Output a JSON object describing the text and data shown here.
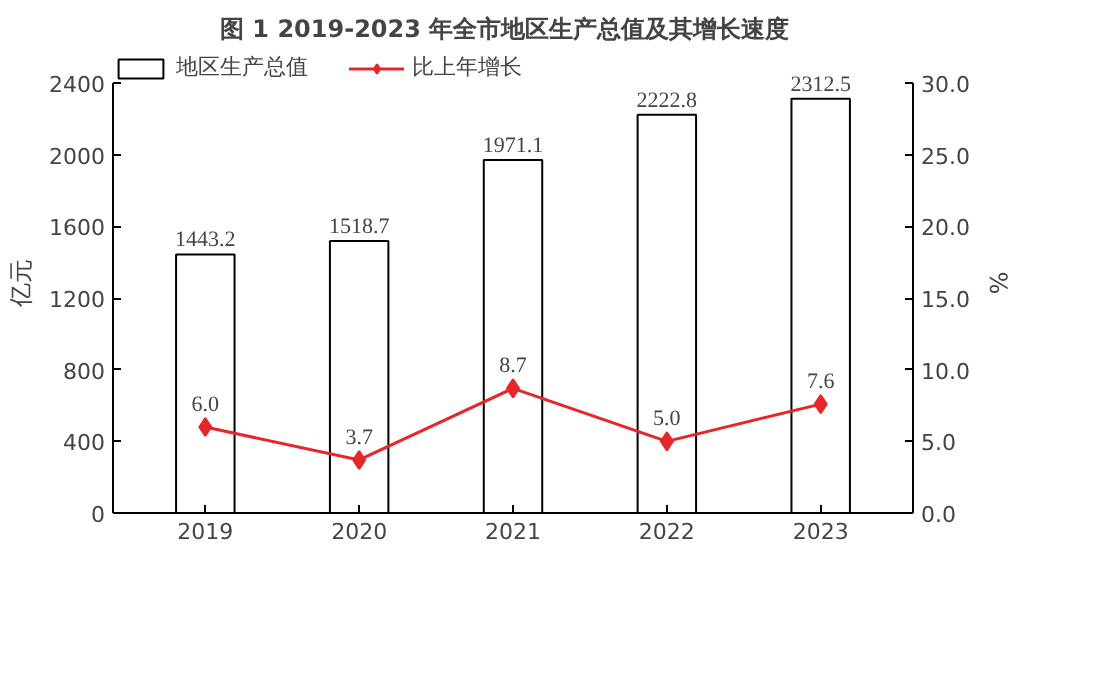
{
  "chart_data": {
    "type": "bar",
    "title": "图 1   2019-2023 年全市地区生产总值及其增长速度",
    "categories": [
      "2019",
      "2020",
      "2021",
      "2022",
      "2023"
    ],
    "series": [
      {
        "name": "地区生产总值",
        "color": "#ffffff",
        "values": [
          1443.2,
          1518.7,
          1971.1,
          2222.8,
          2312.5
        ]
      },
      {
        "name": "比上年增长",
        "type": "line",
        "axis": "y2",
        "color": "#e8262a",
        "values": [
          6.0,
          3.7,
          8.7,
          5.0,
          7.6
        ],
        "value_labels": [
          "6.0",
          "3.7",
          "8.7",
          "5.0",
          "7.6"
        ]
      }
    ],
    "ylabel": "亿元",
    "y2label": "%",
    "ylim": [
      0,
      2400
    ],
    "yticks": [
      0,
      400,
      800,
      1200,
      1600,
      2000,
      2400
    ],
    "y2lim": [
      0,
      30
    ],
    "y2ticks": [
      {
        "value": 0,
        "label": "0.0"
      },
      {
        "value": 5,
        "label": "5.0"
      },
      {
        "value": 10,
        "label": "10.0"
      },
      {
        "value": 15,
        "label": "15.0"
      },
      {
        "value": 20,
        "label": "20.0"
      },
      {
        "value": 25,
        "label": "25.0"
      },
      {
        "value": 30,
        "label": "30.0"
      }
    ],
    "marker": "diamond",
    "data_labels": true,
    "legend": "top left",
    "grid": false
  }
}
